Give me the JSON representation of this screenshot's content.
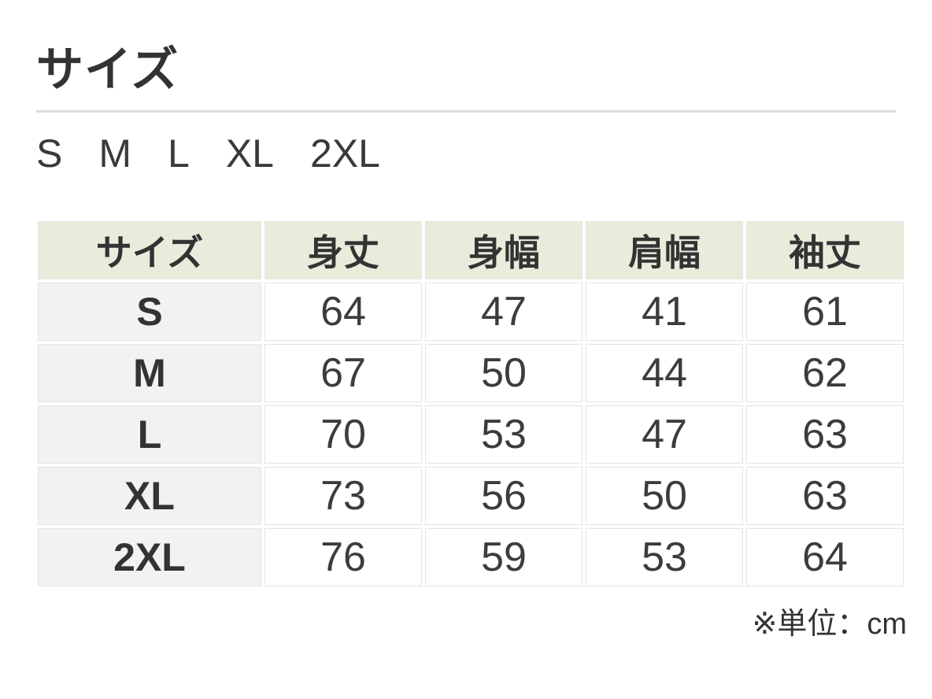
{
  "section": {
    "title": "サイズ"
  },
  "size_options": [
    "S",
    "M",
    "L",
    "XL",
    "2XL"
  ],
  "table": {
    "columns": [
      "サイズ",
      "身丈",
      "身幅",
      "肩幅",
      "袖丈"
    ],
    "rows": [
      {
        "size": "S",
        "values": [
          "64",
          "47",
          "41",
          "61"
        ]
      },
      {
        "size": "M",
        "values": [
          "67",
          "50",
          "44",
          "62"
        ]
      },
      {
        "size": "L",
        "values": [
          "70",
          "53",
          "47",
          "63"
        ]
      },
      {
        "size": "XL",
        "values": [
          "73",
          "56",
          "50",
          "63"
        ]
      },
      {
        "size": "2XL",
        "values": [
          "76",
          "59",
          "53",
          "64"
        ]
      }
    ],
    "unit_note": "※単位：cm"
  },
  "colors": {
    "header_bg": "#ebebdc",
    "row_label_bg": "#f2f2f2",
    "cell_bg": "#ffffff",
    "cell_border": "#e4e4e4",
    "divider": "#dcdcdc",
    "text": "#333333"
  }
}
